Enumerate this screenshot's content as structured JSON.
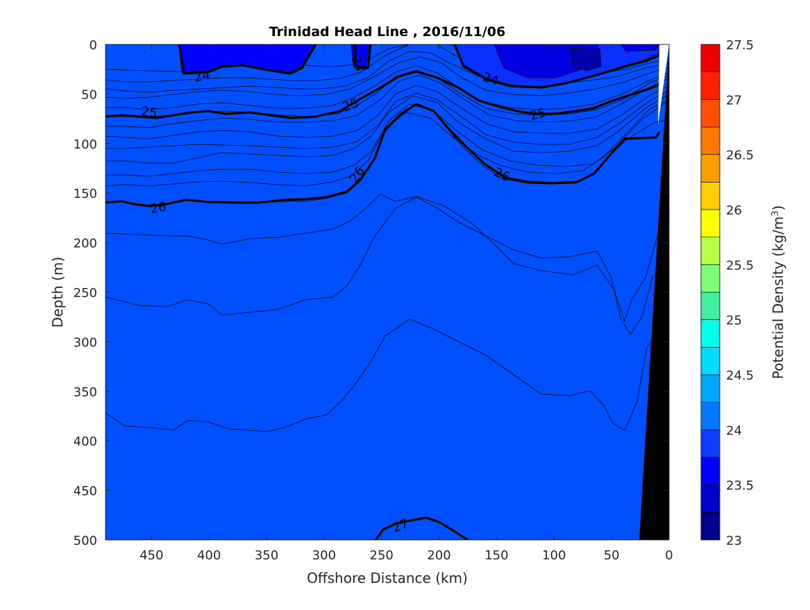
{
  "chart_data": {
    "type": "heatmap",
    "subtype": "filled-contour",
    "title": "Trinidad Head Line , 2016/11/06",
    "xlabel": "Offshore Distance (km)",
    "ylabel": "Depth (m)",
    "xlim": [
      490,
      0
    ],
    "ylim": [
      500,
      0
    ],
    "x_reversed": true,
    "y_reversed": true,
    "x_ticks": [
      450,
      400,
      350,
      300,
      250,
      200,
      150,
      100,
      50,
      0
    ],
    "y_ticks": [
      0,
      50,
      100,
      150,
      200,
      250,
      300,
      350,
      400,
      450,
      500
    ],
    "colorbar": {
      "label_main": "Potential Density (kg/m",
      "label_sup": "3",
      "label_close": ")",
      "min": 23,
      "max": 27.5,
      "tick_labels": [
        "23",
        "23.5",
        "24",
        "24.5",
        "25",
        "25.5",
        "26",
        "26.5",
        "27",
        "27.5"
      ],
      "tick_values": [
        23,
        23.5,
        24,
        24.5,
        25,
        25.5,
        26,
        26.5,
        27,
        27.5
      ],
      "levels": [
        23,
        23.25,
        23.5,
        23.75,
        24,
        24.25,
        24.5,
        24.75,
        25,
        25.25,
        25.5,
        25.75,
        26,
        26.25,
        26.5,
        26.75,
        27,
        27.25,
        27.5
      ],
      "colors": [
        "#00008f",
        "#0000c8",
        "#0000ff",
        "#0a3dff",
        "#0078ff",
        "#00a8ff",
        "#00dcff",
        "#00ffea",
        "#3cf0a0",
        "#7dff7a",
        "#b9ff46",
        "#ffff00",
        "#ffcd00",
        "#ff9c00",
        "#ff7800",
        "#ff5000",
        "#ff2200",
        "#ee0000"
      ]
    },
    "labeled_contours": [
      {
        "value": 24,
        "labels": [
          "24",
          "24",
          "24"
        ]
      },
      {
        "value": 25,
        "labels": [
          "25",
          "25",
          "25"
        ]
      },
      {
        "value": 26,
        "labels": [
          "26",
          "26",
          "26"
        ]
      },
      {
        "value": 27,
        "labels": [
          "27"
        ]
      }
    ],
    "bathymetry": "black",
    "grid": false
  }
}
